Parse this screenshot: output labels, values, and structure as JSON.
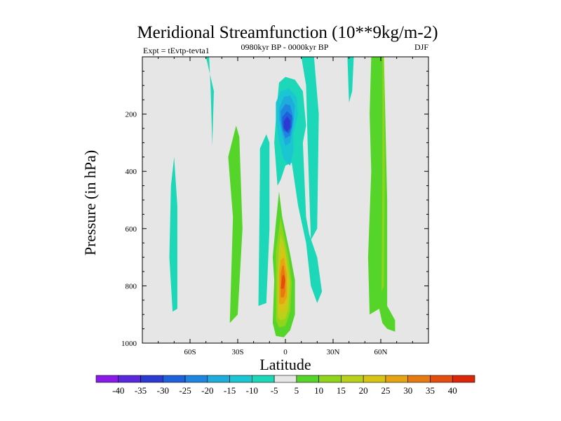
{
  "chart_data": {
    "type": "contour",
    "title": "Meridional Streamfunction (10**9kg/m-2)",
    "left_subtitle": "Expt = tEvtp-tevta1",
    "center_subtitle": "0980kyr BP - 0000kyr BP",
    "right_subtitle": "DJF",
    "xlabel": "Latitude",
    "ylabel": "Pressure (in hPa)",
    "xlim": [
      -90,
      90
    ],
    "ylim": [
      1000,
      0
    ],
    "x_ticks": [
      {
        "value": -60,
        "label": "60S"
      },
      {
        "value": -30,
        "label": "30S"
      },
      {
        "value": 0,
        "label": "0"
      },
      {
        "value": 30,
        "label": "30N"
      },
      {
        "value": 60,
        "label": "60N"
      }
    ],
    "y_ticks": [
      {
        "value": 200,
        "label": "200"
      },
      {
        "value": 400,
        "label": "400"
      },
      {
        "value": 600,
        "label": "600"
      },
      {
        "value": 800,
        "label": "800"
      },
      {
        "value": 1000,
        "label": "1000"
      }
    ],
    "missing_color": "#e6e6e6",
    "colorbar": {
      "levels": [
        -40,
        -35,
        -30,
        -25,
        -20,
        -15,
        -10,
        -5,
        5,
        10,
        15,
        20,
        25,
        30,
        35,
        40
      ],
      "colors": [
        "#8a1ae8",
        "#5a28dc",
        "#2d3ad2",
        "#1f60dc",
        "#1e85e1",
        "#1eacdc",
        "#19c6d2",
        "#1cd7b8",
        "#e6e6e6",
        "#55d42a",
        "#90d41c",
        "#b9d11a",
        "#d7c414",
        "#e6a412",
        "#e67a10",
        "#e34d0e",
        "#dc260a"
      ]
    },
    "features": [
      {
        "name": "cyan-column-60s",
        "value": -7,
        "polygon": [
          [
            -71,
            890
          ],
          [
            -73,
            700
          ],
          [
            -72,
            450
          ],
          [
            -70,
            350
          ],
          [
            -68,
            520
          ],
          [
            -68,
            880
          ]
        ]
      },
      {
        "name": "cyan-column-45s",
        "value": -7,
        "polygon": [
          [
            -50,
            0
          ],
          [
            -48,
            0
          ],
          [
            -47,
            120
          ],
          [
            -46,
            310
          ],
          [
            -45,
            120
          ]
        ]
      },
      {
        "name": "green-column-30s",
        "value": 7,
        "polygon": [
          [
            -35,
            930
          ],
          [
            -33,
            560
          ],
          [
            -36,
            350
          ],
          [
            -31,
            240
          ],
          [
            -29,
            280
          ],
          [
            -27,
            600
          ],
          [
            -30,
            900
          ]
        ]
      },
      {
        "name": "cyan-column-15s",
        "value": -7,
        "polygon": [
          [
            -17,
            870
          ],
          [
            -16,
            400
          ],
          [
            -16,
            320
          ],
          [
            -12,
            270
          ],
          [
            -10,
            300
          ],
          [
            -10,
            600
          ],
          [
            -12,
            860
          ]
        ]
      },
      {
        "name": "cyan-uppercell",
        "value": -7,
        "polygon": [
          [
            -7,
            300
          ],
          [
            -6,
            220
          ],
          [
            -5,
            150
          ],
          [
            -4,
            90
          ],
          [
            0,
            70
          ],
          [
            6,
            80
          ],
          [
            11,
            120
          ],
          [
            13,
            240
          ],
          [
            11,
            300
          ],
          [
            13,
            560
          ],
          [
            15,
            620
          ],
          [
            20,
            700
          ],
          [
            23,
            820
          ],
          [
            20,
            860
          ],
          [
            16,
            800
          ],
          [
            13,
            650
          ],
          [
            8,
            520
          ],
          [
            4,
            370
          ],
          [
            0,
            380
          ],
          [
            -3,
            430
          ],
          [
            -5,
            450
          ]
        ]
      },
      {
        "name": "cyan-column-10n",
        "value": -7,
        "polygon": [
          [
            10,
            0
          ],
          [
            18,
            0
          ],
          [
            21,
            200
          ],
          [
            20,
            600
          ],
          [
            16,
            640
          ],
          [
            14,
            300
          ],
          [
            13,
            100
          ]
        ]
      },
      {
        "name": "cyan-column-40n",
        "value": -7,
        "polygon": [
          [
            39,
            0
          ],
          [
            43,
            0
          ],
          [
            42,
            120
          ],
          [
            40,
            160
          ]
        ]
      },
      {
        "name": "negative-core-l1",
        "value": -12,
        "polygon": [
          [
            -6,
            160
          ],
          [
            -3,
            120
          ],
          [
            2,
            110
          ],
          [
            7,
            140
          ],
          [
            8,
            200
          ],
          [
            5,
            270
          ],
          [
            5,
            330
          ],
          [
            3,
            380
          ],
          [
            -1,
            360
          ],
          [
            -4,
            290
          ],
          [
            -6,
            220
          ]
        ]
      },
      {
        "name": "negative-core-l2",
        "value": -17,
        "polygon": [
          [
            -4,
            180
          ],
          [
            -1,
            140
          ],
          [
            3,
            135
          ],
          [
            6,
            170
          ],
          [
            5,
            240
          ],
          [
            3,
            300
          ],
          [
            0,
            310
          ],
          [
            -2,
            270
          ],
          [
            -4,
            220
          ]
        ]
      },
      {
        "name": "negative-core-l3",
        "value": -22,
        "polygon": [
          [
            -3,
            190
          ],
          [
            0,
            165
          ],
          [
            3,
            170
          ],
          [
            5,
            215
          ],
          [
            3,
            275
          ],
          [
            0,
            285
          ],
          [
            -2,
            255
          ],
          [
            -3,
            220
          ]
        ]
      },
      {
        "name": "negative-core-l4",
        "value": -27,
        "polygon": [
          [
            -2,
            210
          ],
          [
            1,
            190
          ],
          [
            4,
            205
          ],
          [
            4,
            245
          ],
          [
            2,
            268
          ],
          [
            -1,
            258
          ],
          [
            -2,
            235
          ]
        ]
      },
      {
        "name": "negative-core-l5",
        "value": -32,
        "polygon": [
          [
            -1,
            225
          ],
          [
            1,
            208
          ],
          [
            3,
            222
          ],
          [
            3,
            248
          ],
          [
            1,
            262
          ],
          [
            -1,
            248
          ]
        ]
      },
      {
        "name": "positive-cell-l1",
        "value": 7,
        "polygon": [
          [
            -8,
            930
          ],
          [
            -7,
            780
          ],
          [
            -8,
            700
          ],
          [
            -6,
            580
          ],
          [
            -4,
            470
          ],
          [
            -2,
            560
          ],
          [
            3,
            690
          ],
          [
            6,
            780
          ],
          [
            6,
            900
          ],
          [
            3,
            955
          ],
          [
            -1,
            980
          ],
          [
            -6,
            975
          ]
        ]
      },
      {
        "name": "positive-cell-l2",
        "value": 12,
        "polygon": [
          [
            -6,
            920
          ],
          [
            -6,
            780
          ],
          [
            -6,
            680
          ],
          [
            -4,
            600
          ],
          [
            -3,
            560
          ],
          [
            -1,
            620
          ],
          [
            2,
            700
          ],
          [
            4,
            790
          ],
          [
            3,
            890
          ],
          [
            0,
            940
          ],
          [
            -4,
            945
          ]
        ]
      },
      {
        "name": "positive-cell-l3",
        "value": 17,
        "polygon": [
          [
            -5,
            910
          ],
          [
            -5,
            760
          ],
          [
            -4,
            660
          ],
          [
            -3,
            620
          ],
          [
            -1,
            650
          ],
          [
            1,
            710
          ],
          [
            3,
            790
          ],
          [
            2,
            880
          ],
          [
            0,
            915
          ],
          [
            -3,
            920
          ]
        ]
      },
      {
        "name": "positive-cell-l4",
        "value": 22,
        "polygon": [
          [
            -4,
            880
          ],
          [
            -4,
            760
          ],
          [
            -3,
            680
          ],
          [
            -2,
            650
          ],
          [
            0,
            700
          ],
          [
            2,
            780
          ],
          [
            1,
            860
          ],
          [
            -1,
            890
          ],
          [
            -3,
            892
          ]
        ]
      },
      {
        "name": "positive-cell-l5",
        "value": 27,
        "polygon": [
          [
            -4,
            860
          ],
          [
            -4,
            760
          ],
          [
            -3,
            710
          ],
          [
            -1,
            700
          ],
          [
            1,
            760
          ],
          [
            1,
            840
          ],
          [
            -1,
            862
          ],
          [
            -3,
            865
          ]
        ]
      },
      {
        "name": "positive-cell-l6",
        "value": 32,
        "polygon": [
          [
            -3,
            840
          ],
          [
            -3,
            760
          ],
          [
            -2,
            730
          ],
          [
            -1,
            730
          ],
          [
            0,
            770
          ],
          [
            0,
            820
          ],
          [
            -1,
            840
          ]
        ]
      },
      {
        "name": "positive-cell-l7",
        "value": 37,
        "polygon": [
          [
            -3,
            810
          ],
          [
            -2,
            765
          ],
          [
            -1,
            760
          ],
          [
            0,
            780
          ],
          [
            -1,
            810
          ]
        ]
      },
      {
        "name": "green-column-55n",
        "value": 7,
        "polygon": [
          [
            53,
            900
          ],
          [
            52,
            700
          ],
          [
            54,
            400
          ],
          [
            53,
            200
          ],
          [
            54,
            0
          ],
          [
            62,
            0
          ],
          [
            63,
            250
          ],
          [
            64,
            500
          ],
          [
            64,
            870
          ],
          [
            69,
            920
          ],
          [
            69,
            960
          ],
          [
            64,
            950
          ],
          [
            61,
            930
          ],
          [
            59,
            880
          ]
        ]
      },
      {
        "name": "yellow-green-line-60n",
        "value": 12,
        "polygon": [
          [
            61,
            0
          ],
          [
            62,
            0
          ],
          [
            62.5,
            400
          ],
          [
            62,
            800
          ],
          [
            60.5,
            820
          ],
          [
            61,
            400
          ]
        ]
      }
    ]
  }
}
